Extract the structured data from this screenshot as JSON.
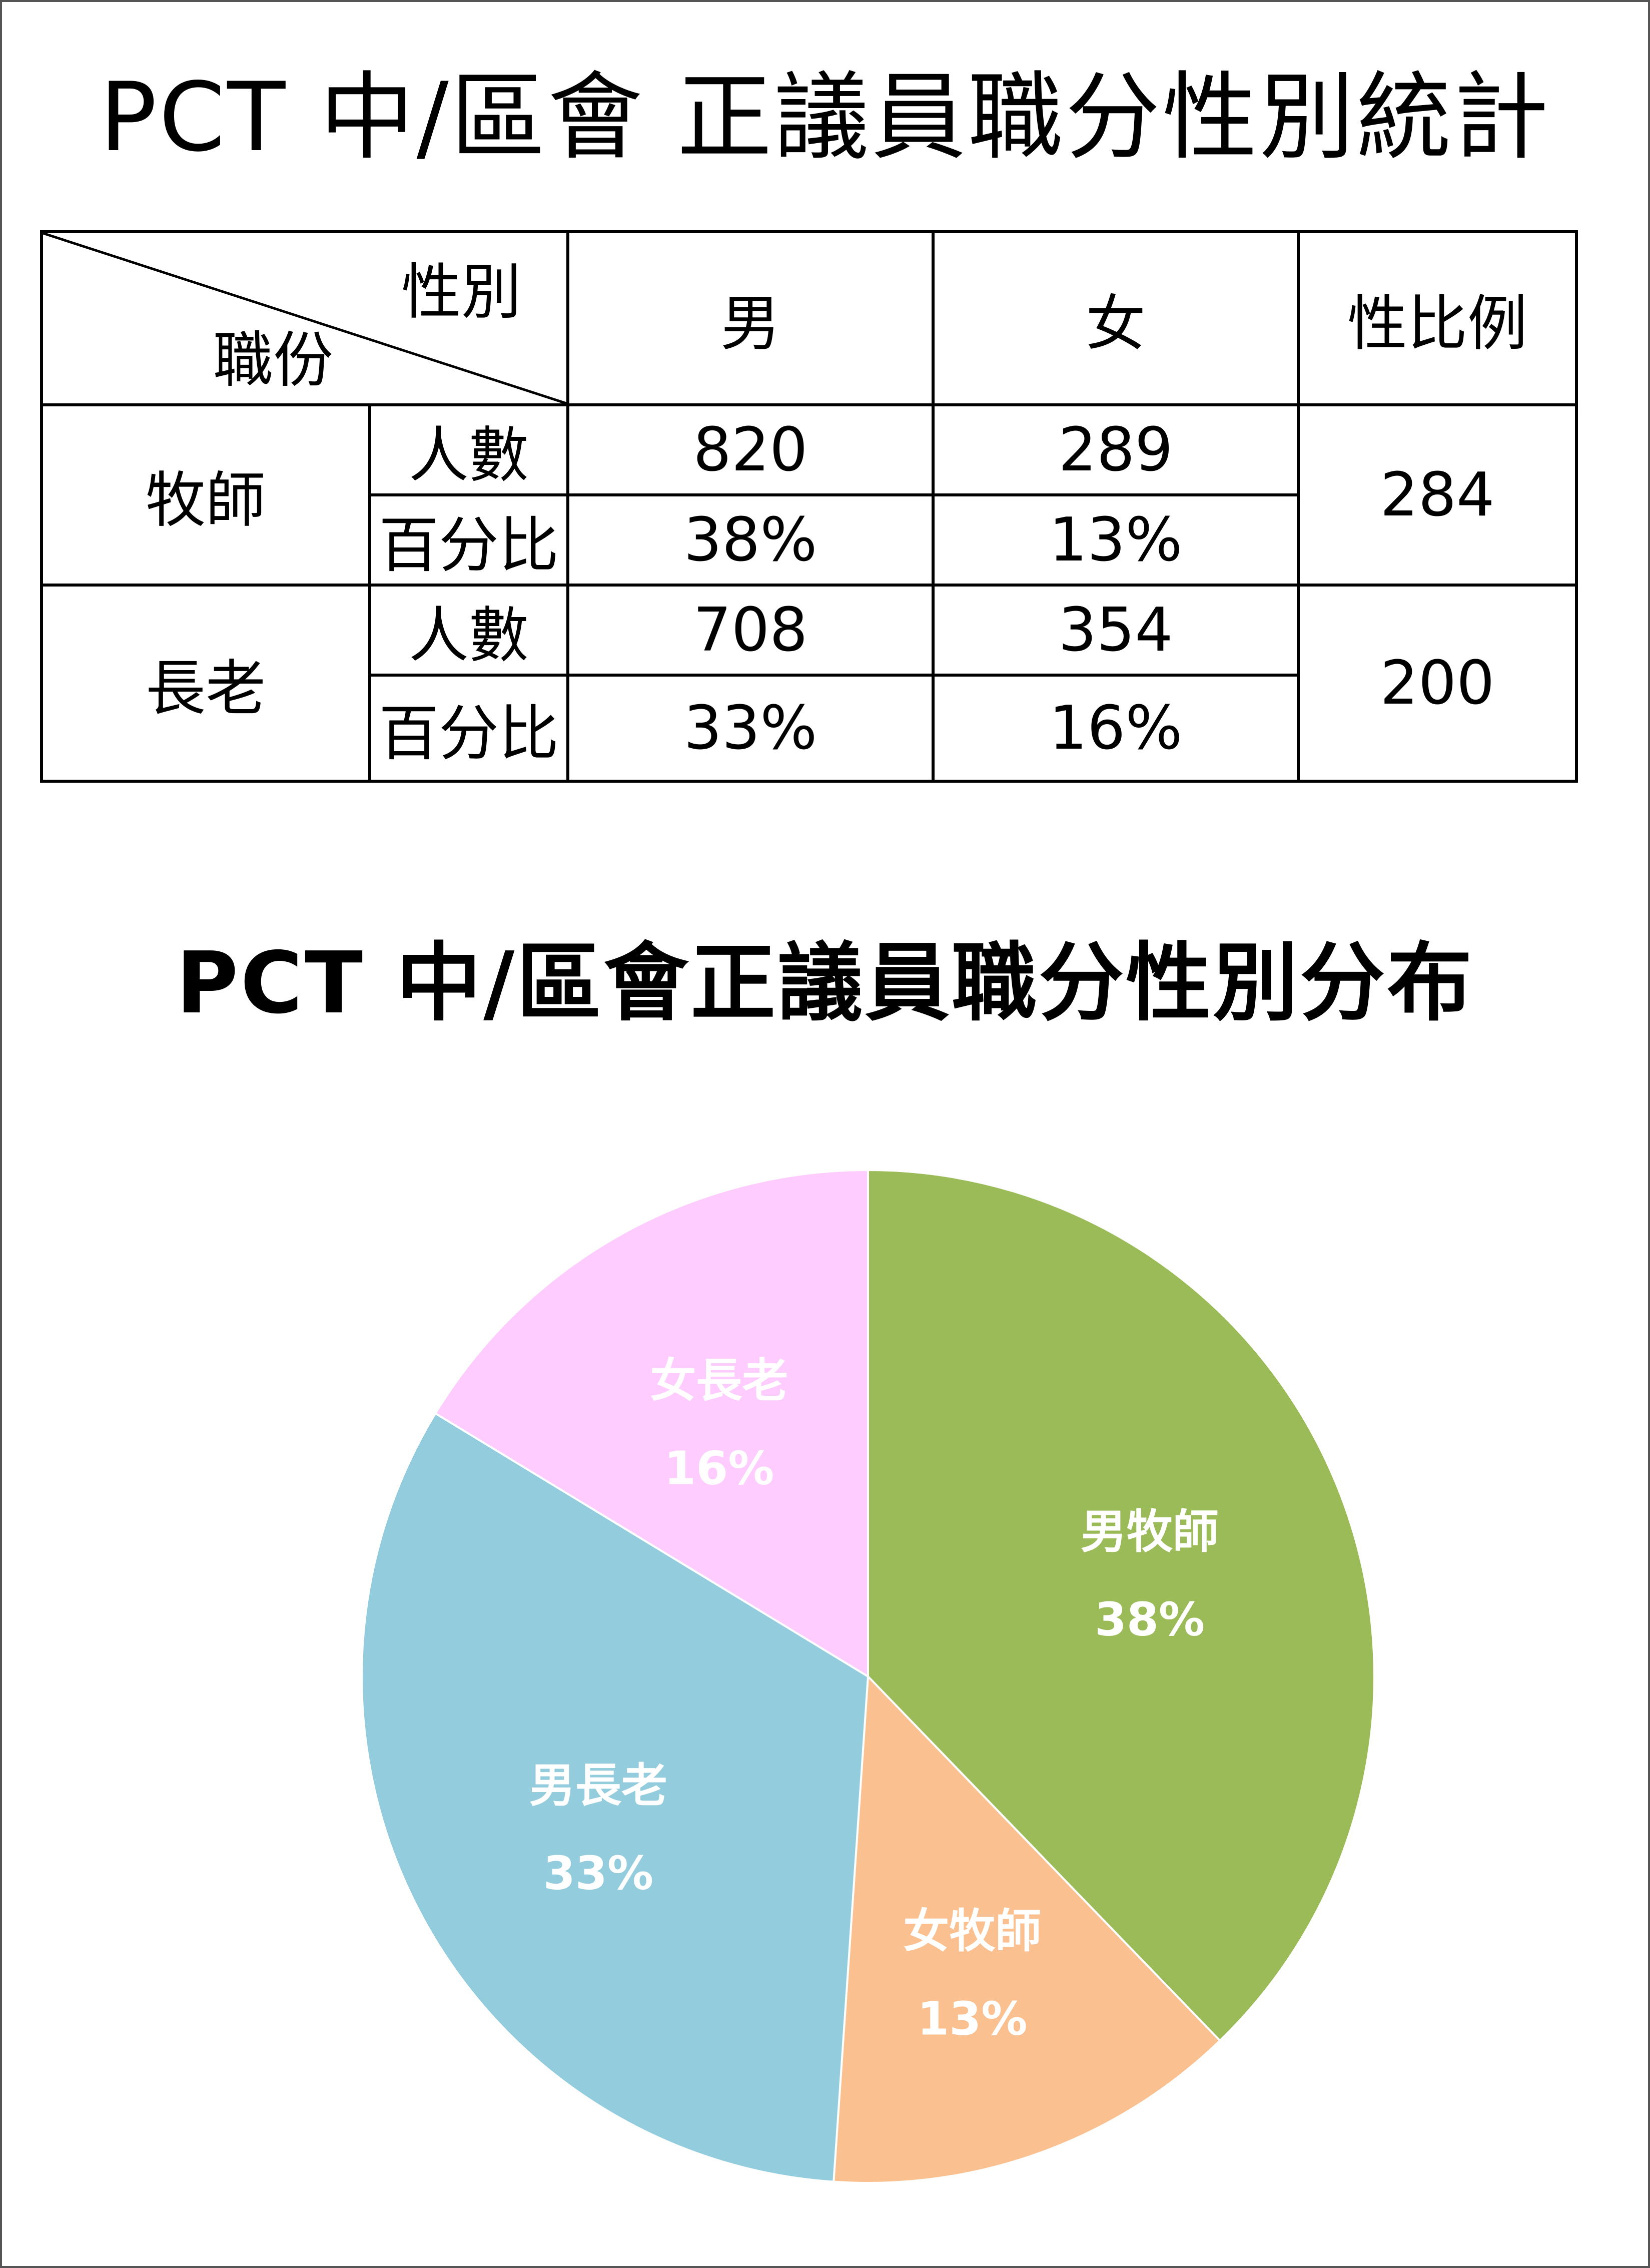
{
  "title": "PCT 中/區會 正議員職分性別統計",
  "table": {
    "corner_top": "性別",
    "corner_bottom": "職份",
    "headers": [
      "男",
      "女",
      "性比例"
    ],
    "groups": [
      {
        "role": "牧師",
        "count_label": "人數",
        "pct_label": "百分比",
        "male_count": "820",
        "female_count": "289",
        "male_pct": "38%",
        "female_pct": "13%",
        "ratio": "284"
      },
      {
        "role": "長老",
        "count_label": "人數",
        "pct_label": "百分比",
        "male_count": "708",
        "female_count": "354",
        "male_pct": "33%",
        "female_pct": "16%",
        "ratio": "200"
      }
    ]
  },
  "chart_data": {
    "type": "pie",
    "title": "PCT 中/區會正議員職分性別分布",
    "slices": [
      {
        "label": "男牧師",
        "value": 820,
        "percent": "38%",
        "color": "#9BBB59"
      },
      {
        "label": "女牧師",
        "value": 289,
        "percent": "13%",
        "color": "#FAC090"
      },
      {
        "label": "男長老",
        "value": 708,
        "percent": "33%",
        "color": "#93CDDD"
      },
      {
        "label": "女長老",
        "value": 354,
        "percent": "16%",
        "color": "#FFCCFF"
      }
    ],
    "start_angle": "12 o'clock",
    "direction": "clockwise",
    "label_color": "#FFFFFF"
  }
}
